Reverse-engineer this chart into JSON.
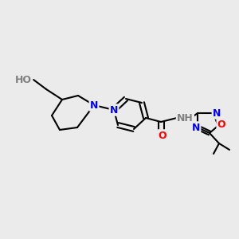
{
  "background_color": "#ebebeb",
  "title": "",
  "figsize": [
    3.0,
    3.0
  ],
  "dpi": 100,
  "atom_colors": {
    "C": "#000000",
    "N": "#0000ff",
    "O": "#ff0000",
    "H": "#808080"
  },
  "bond_color": "#000000",
  "bond_width": 1.5,
  "font_size_atoms": 9,
  "font_size_small": 7.5
}
